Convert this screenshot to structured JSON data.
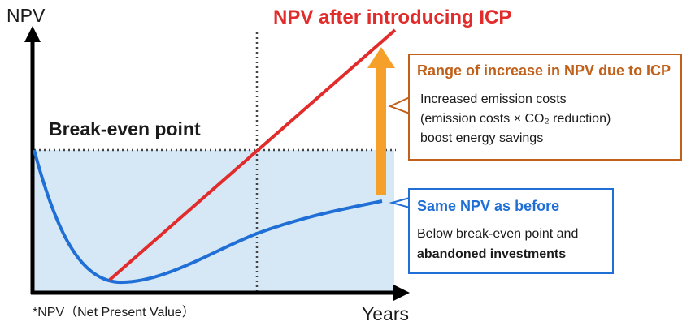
{
  "axes": {
    "y_label": "NPV",
    "x_label": "Years"
  },
  "footnote": "*NPV（Net Present Value）",
  "break_even_label": "Break-even point",
  "red_line_title": "NPV after introducing ICP",
  "orange_callout": {
    "title": "Range of increase in NPV due to ICP",
    "lines": [
      "Increased emission costs",
      "(emission costs × CO₂ reduction)",
      "boost energy savings"
    ]
  },
  "blue_callout": {
    "title": "Same NPV as before",
    "lines": [
      "Below break-even point and",
      "abandoned investments"
    ]
  },
  "colors": {
    "red_line": "#e22b2b",
    "blue_curve": "#1f6fd6",
    "orange_arrow": "#f5a02a",
    "orange_border": "#c0601a",
    "blue_border": "#1f6fd6",
    "shaded_area": "#d6e8f6"
  }
}
